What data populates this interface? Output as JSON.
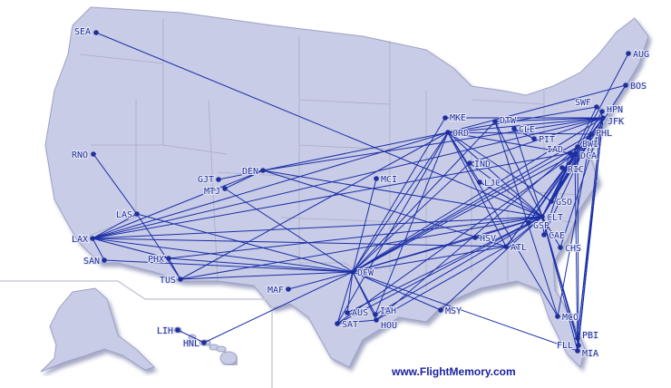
{
  "map": {
    "colors": {
      "land": "#c9cce6",
      "route": "#1a2fa8",
      "airport": "#1f2f9a",
      "border": "#a9acc2"
    },
    "airports": [
      "SEA",
      "RNO",
      "LAS",
      "LAX",
      "SAN",
      "PHX",
      "TUS",
      "GJT",
      "MTJ",
      "DEN",
      "MCI",
      "MAF",
      "DFW",
      "AUS",
      "SAT",
      "IAH",
      "HOU",
      "MSY",
      "MKE",
      "ORD",
      "DTW",
      "CLE",
      "PIT",
      "IND",
      "LJC",
      "HSV",
      "ATL",
      "CLT",
      "GSP",
      "CAE",
      "CHS",
      "GSO",
      "BWI",
      "IAD",
      "DCA",
      "RIC",
      "PHL",
      "SWF",
      "HPN",
      "JFK",
      "BOS",
      "AUG",
      "MCO",
      "PBI",
      "FLL",
      "MIA",
      "LIH",
      "HNL"
    ],
    "routes": [
      [
        "SEA",
        "CLT"
      ],
      [
        "RNO",
        "LAS"
      ],
      [
        "LAS",
        "LAX"
      ],
      [
        "LAS",
        "DFW"
      ],
      [
        "LAX",
        "SAN"
      ],
      [
        "LAX",
        "DEN"
      ],
      [
        "LAX",
        "ORD"
      ],
      [
        "LAX",
        "CLT"
      ],
      [
        "LAX",
        "JFK"
      ],
      [
        "LAX",
        "ATL"
      ],
      [
        "LAX",
        "DFW"
      ],
      [
        "LAX",
        "PHX"
      ],
      [
        "LAX",
        "IAD"
      ],
      [
        "SAN",
        "DFW"
      ],
      [
        "PHX",
        "DFW"
      ],
      [
        "PHX",
        "TUS"
      ],
      [
        "PHX",
        "CLT"
      ],
      [
        "TUS",
        "DFW"
      ],
      [
        "TUS",
        "CLT"
      ],
      [
        "TUS",
        "ORD"
      ],
      [
        "LAS",
        "TUS"
      ],
      [
        "GJT",
        "DEN"
      ],
      [
        "MTJ",
        "DEN"
      ],
      [
        "MTJ",
        "DFW"
      ],
      [
        "DEN",
        "ORD"
      ],
      [
        "DEN",
        "CLT"
      ],
      [
        "DEN",
        "JFK"
      ],
      [
        "DEN",
        "ATL"
      ],
      [
        "MCI",
        "DFW"
      ],
      [
        "MAF",
        "DFW"
      ],
      [
        "DFW",
        "ORD"
      ],
      [
        "DFW",
        "CLT"
      ],
      [
        "DFW",
        "ATL"
      ],
      [
        "DFW",
        "JFK"
      ],
      [
        "DFW",
        "DCA"
      ],
      [
        "DFW",
        "MIA"
      ],
      [
        "DFW",
        "MSY"
      ],
      [
        "DFW",
        "AUS"
      ],
      [
        "DFW",
        "SAT"
      ],
      [
        "DFW",
        "IAH"
      ],
      [
        "DFW",
        "HOU"
      ],
      [
        "DFW",
        "HNL"
      ],
      [
        "DFW",
        "MKE"
      ],
      [
        "DFW",
        "DTW"
      ],
      [
        "DFW",
        "PHL"
      ],
      [
        "DFW",
        "BWI"
      ],
      [
        "DFW",
        "IND"
      ],
      [
        "AUS",
        "CLT"
      ],
      [
        "SAT",
        "ORD"
      ],
      [
        "SAT",
        "CLT"
      ],
      [
        "SAT",
        "DCA"
      ],
      [
        "SAT",
        "HOU"
      ],
      [
        "IAH",
        "CLT"
      ],
      [
        "IAH",
        "ORD"
      ],
      [
        "HOU",
        "ATL"
      ],
      [
        "HOU",
        "BWI"
      ],
      [
        "ORD",
        "JFK"
      ],
      [
        "ORD",
        "CLT"
      ],
      [
        "ORD",
        "DCA"
      ],
      [
        "ORD",
        "SWF"
      ],
      [
        "ORD",
        "ATL"
      ],
      [
        "ORD",
        "LJC"
      ],
      [
        "ORD",
        "MCO"
      ],
      [
        "ORD",
        "BOS"
      ],
      [
        "ORD",
        "PHL"
      ],
      [
        "ORD",
        "GSO"
      ],
      [
        "MKE",
        "JFK"
      ],
      [
        "DTW",
        "JFK"
      ],
      [
        "DTW",
        "CLT"
      ],
      [
        "DTW",
        "MCO"
      ],
      [
        "CLE",
        "PIT"
      ],
      [
        "CLE",
        "CLT"
      ],
      [
        "IND",
        "CLT"
      ],
      [
        "IND",
        "JFK"
      ],
      [
        "LJC",
        "CLT"
      ],
      [
        "HSV",
        "CLT"
      ],
      [
        "HSV",
        "DFW"
      ],
      [
        "ATL",
        "CLT"
      ],
      [
        "ATL",
        "JFK"
      ],
      [
        "ATL",
        "DCA"
      ],
      [
        "CLT",
        "JFK"
      ],
      [
        "CLT",
        "PHL"
      ],
      [
        "CLT",
        "DCA"
      ],
      [
        "CLT",
        "BWI"
      ],
      [
        "CLT",
        "BOS"
      ],
      [
        "CLT",
        "AUG"
      ],
      [
        "CLT",
        "HPN"
      ],
      [
        "CLT",
        "SWF"
      ],
      [
        "CLT",
        "MIA"
      ],
      [
        "CLT",
        "FLL"
      ],
      [
        "CLT",
        "PBI"
      ],
      [
        "CLT",
        "MSY"
      ],
      [
        "CLT",
        "CHS"
      ],
      [
        "CLT",
        "CAE"
      ],
      [
        "GSP",
        "JFK"
      ],
      [
        "GSP",
        "DCA"
      ],
      [
        "CAE",
        "PHL"
      ],
      [
        "CAE",
        "IAD"
      ],
      [
        "CHS",
        "JFK"
      ],
      [
        "JFK",
        "MIA"
      ],
      [
        "JFK",
        "FLL"
      ],
      [
        "JFK",
        "PBI"
      ],
      [
        "HPN",
        "PBI"
      ],
      [
        "DCA",
        "MIA"
      ],
      [
        "BWI",
        "FLL"
      ],
      [
        "PHL",
        "MCO"
      ],
      [
        "LIH",
        "HNL"
      ]
    ]
  },
  "footer": {
    "credit": "www.FlightMemory.com"
  }
}
